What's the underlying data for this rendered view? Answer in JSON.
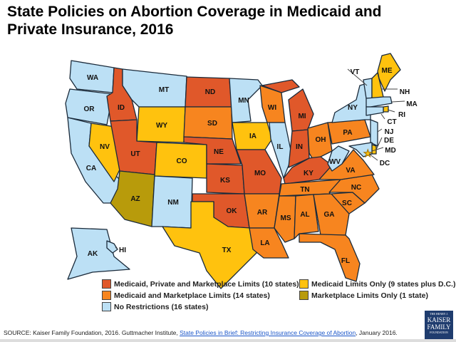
{
  "title": "State Policies on Abortion Coverage in Medicaid and Private Insurance, 2016",
  "colors": {
    "mpm": "#E0582A",
    "mm": "#F7851F",
    "mo": "#FFC20E",
    "mk": "#B89B0B",
    "nr": "#BCE0F5"
  },
  "legend": {
    "mpm": "Medicaid, Private and Marketplace Limits (10 states)",
    "mm": "Medicaid and Marketplace Limits (14 states)",
    "nr": "No Restrictions (16 states)",
    "mo": "Medicaid Limits Only (9 states plus D.C.)",
    "mk": "Marketplace Limits Only (1 state)"
  },
  "states": {
    "WA": "nr",
    "OR": "nr",
    "CA": "nr",
    "NV": "mo",
    "ID": "mpm",
    "MT": "nr",
    "WY": "mo",
    "UT": "mpm",
    "CO": "mo",
    "AZ": "mk",
    "NM": "nr",
    "ND": "mpm",
    "SD": "mm",
    "NE": "mpm",
    "KS": "mpm",
    "OK": "mpm",
    "TX": "mo",
    "MN": "nr",
    "IA": "mo",
    "MO": "mpm",
    "AR": "mm",
    "LA": "mm",
    "WI": "mm",
    "IL": "nr",
    "MI": "mpm",
    "IN": "mpm",
    "OH": "mm",
    "KY": "mpm",
    "TN": "mm",
    "MS": "mm",
    "AL": "mm",
    "GA": "mm",
    "FL": "mm",
    "SC": "mm",
    "NC": "mm",
    "VA": "mm",
    "WV": "nr",
    "PA": "mm",
    "NY": "nr",
    "NJ": "nr",
    "DE": "mo",
    "MD": "nr",
    "VT": "nr",
    "NH": "mo",
    "ME": "mo",
    "MA": "nr",
    "RI": "mo",
    "CT": "nr",
    "AK": "nr",
    "HI": "nr",
    "DC": "mo"
  },
  "source": {
    "prefix": "SOURCE: Kaiser Family Foundation, 2016. Guttmacher Institute, ",
    "link": "State Policies in Brief: Restricting Insurance Coverage of Abortion",
    "suffix": ", January 2016."
  },
  "logo": {
    "line1": "THE HENRY J.",
    "line2": "KAISER",
    "line3": "FAMILY",
    "line4": "FOUNDATION"
  }
}
